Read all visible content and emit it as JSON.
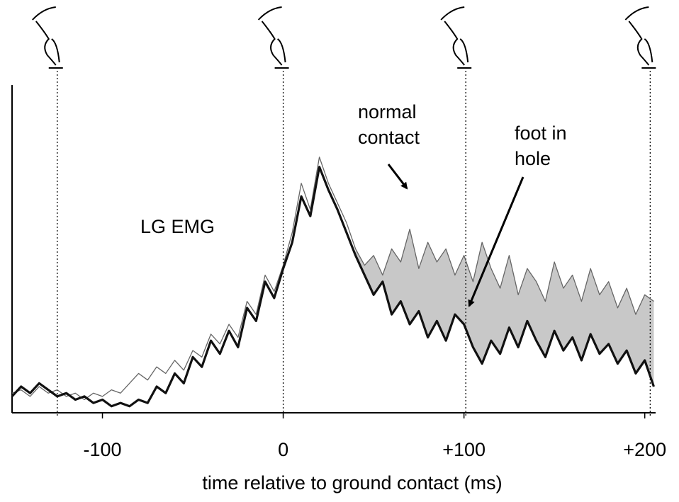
{
  "chart_data": {
    "type": "line",
    "x": [
      -150,
      -145,
      -140,
      -135,
      -130,
      -125,
      -120,
      -115,
      -110,
      -105,
      -100,
      -95,
      -90,
      -85,
      -80,
      -75,
      -70,
      -65,
      -60,
      -55,
      -50,
      -45,
      -40,
      -35,
      -30,
      -25,
      -20,
      -15,
      -10,
      -5,
      0,
      5,
      10,
      15,
      20,
      25,
      30,
      35,
      40,
      45,
      50,
      55,
      60,
      65,
      70,
      75,
      80,
      85,
      90,
      95,
      100,
      105,
      110,
      115,
      120,
      125,
      130,
      135,
      140,
      145,
      150,
      155,
      160,
      165,
      170,
      175,
      180,
      185,
      190,
      195,
      200,
      205
    ],
    "series": [
      {
        "color": "#666666",
        "width": 1.3,
        "values": [
          6,
          7,
          5,
          8,
          6,
          7,
          5,
          6,
          4,
          6,
          5,
          7,
          6,
          9,
          12,
          10,
          14,
          12,
          16,
          13,
          19,
          17,
          24,
          21,
          27,
          23,
          34,
          30,
          42,
          37,
          45,
          55,
          70,
          62,
          78,
          70,
          64,
          58,
          50,
          45,
          48,
          42,
          50,
          46,
          56,
          44,
          52,
          46,
          50,
          42,
          48,
          40,
          52,
          44,
          38,
          48,
          36,
          44,
          40,
          34,
          46,
          38,
          42,
          34,
          44,
          36,
          40,
          32,
          38,
          30,
          36,
          34
        ]
      },
      {
        "color": "#111111",
        "width": 3.2,
        "values": [
          5,
          8,
          6,
          9,
          7,
          5,
          6,
          4,
          5,
          3,
          4,
          2,
          3,
          2,
          4,
          3,
          8,
          6,
          12,
          9,
          17,
          14,
          22,
          18,
          25,
          20,
          32,
          28,
          40,
          35,
          44,
          52,
          66,
          60,
          75,
          68,
          62,
          55,
          48,
          42,
          36,
          40,
          30,
          34,
          27,
          31,
          23,
          28,
          22,
          30,
          27,
          20,
          15,
          22,
          18,
          26,
          20,
          28,
          22,
          17,
          25,
          19,
          23,
          16,
          24,
          18,
          21,
          15,
          19,
          12,
          16,
          8
        ]
      }
    ],
    "xlim": [
      -150,
      206
    ],
    "ylim": [
      0,
      100
    ],
    "xticks": [
      -100,
      0,
      {
        "value": 100,
        "label": "+100"
      },
      {
        "value": 200,
        "label": "+200"
      }
    ],
    "xlabel": "time relative to ground contact (ms)",
    "reference_lines": [
      -125,
      0,
      101,
      203
    ],
    "annotations": [
      {
        "lines": [
          "LG EMG"
        ]
      },
      {
        "lines": [
          "normal",
          "contact"
        ]
      },
      {
        "lines": [
          "foot in",
          "hole"
        ]
      }
    ]
  }
}
